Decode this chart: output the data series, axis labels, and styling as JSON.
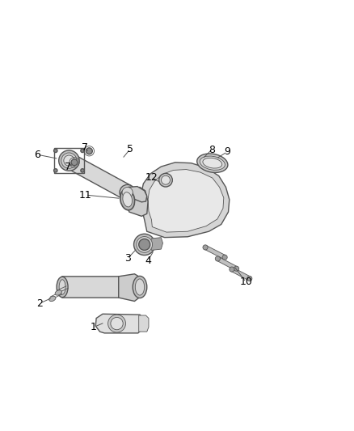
{
  "background_color": "#ffffff",
  "line_color": "#555555",
  "label_color": "#000000",
  "label_fontsize": 9,
  "fig_width": 4.38,
  "fig_height": 5.33,
  "dpi": 100
}
